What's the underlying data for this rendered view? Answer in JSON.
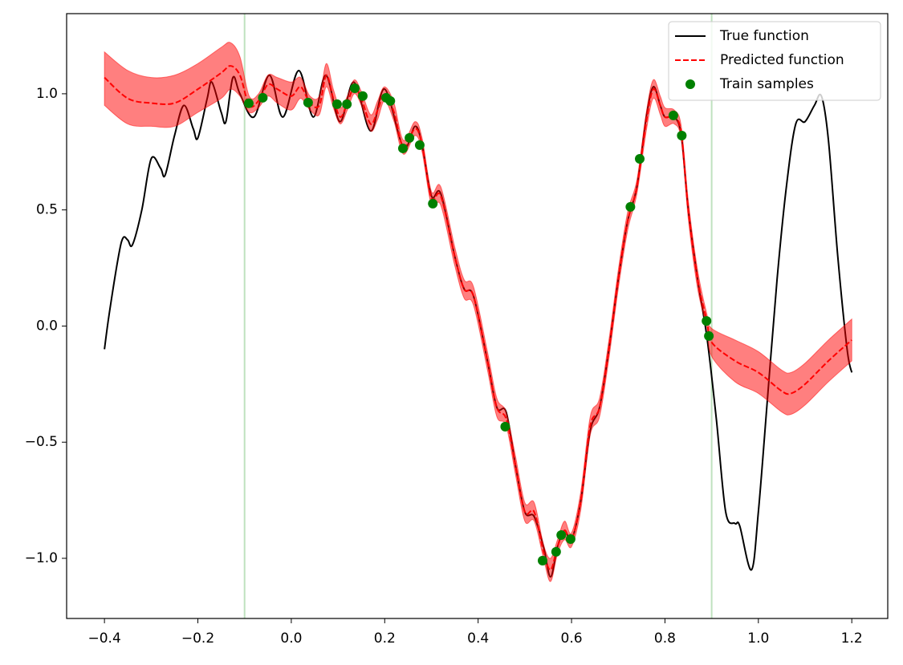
{
  "chart_data": {
    "type": "line",
    "xlim": [
      -0.481,
      1.277
    ],
    "ylim": [
      -1.259,
      1.345
    ],
    "xticks": [
      {
        "value": -0.4,
        "label": "−0.4"
      },
      {
        "value": -0.2,
        "label": "−0.2"
      },
      {
        "value": 0,
        "label": "0.0"
      },
      0.2,
      0.4,
      0.6,
      0.8,
      {
        "value": 1,
        "label": "1.0"
      },
      1.2
    ],
    "yticks": [
      {
        "value": -1,
        "label": "−1.0"
      },
      {
        "value": -0.5,
        "label": "−0.5"
      },
      {
        "value": 0,
        "label": "0.0"
      },
      0.5,
      {
        "value": 1,
        "label": "1.0"
      }
    ],
    "legend": "upper right",
    "vlines": {
      "values": [
        -0.1,
        0.9
      ],
      "color": "#2ca02c"
    },
    "series": [
      {
        "name": "True function",
        "type": "line",
        "color": "#000000",
        "style": "solid",
        "x": [
          -0.4,
          -0.39,
          -0.37,
          -0.36,
          -0.35,
          -0.34,
          -0.32,
          -0.3,
          -0.28,
          -0.27,
          -0.25,
          -0.23,
          -0.21,
          -0.2,
          -0.18,
          -0.17,
          -0.15,
          -0.14,
          -0.125,
          -0.11,
          -0.08,
          -0.047,
          -0.018,
          0.016,
          0.047,
          0.074,
          0.104,
          0.134,
          0.17,
          0.2,
          0.24,
          0.265,
          0.28,
          0.3,
          0.32,
          0.35,
          0.37,
          0.39,
          0.42,
          0.44,
          0.46,
          0.48,
          0.5,
          0.52,
          0.54,
          0.555,
          0.57,
          0.585,
          0.6,
          0.62,
          0.64,
          0.66,
          0.68,
          0.7,
          0.72,
          0.74,
          0.76,
          0.775,
          0.79,
          0.8,
          0.82,
          0.835,
          0.85,
          0.87,
          0.89,
          0.91,
          0.93,
          0.95,
          0.96,
          0.985,
          1.0,
          1.02,
          1.04,
          1.06,
          1.08,
          1.1,
          1.12,
          1.135,
          1.15,
          1.17,
          1.19,
          1.2
        ],
        "values": [
          -0.1,
          0.05,
          0.3,
          0.38,
          0.37,
          0.35,
          0.5,
          0.72,
          0.68,
          0.65,
          0.82,
          0.95,
          0.85,
          0.81,
          0.98,
          1.05,
          0.92,
          0.88,
          1.07,
          1.0,
          0.9,
          1.08,
          0.9,
          1.1,
          0.9,
          1.08,
          0.88,
          1.05,
          0.84,
          1.02,
          0.77,
          0.86,
          0.78,
          0.56,
          0.57,
          0.3,
          0.16,
          0.13,
          -0.15,
          -0.35,
          -0.37,
          -0.6,
          -0.8,
          -0.82,
          -0.95,
          -1.08,
          -0.95,
          -0.88,
          -0.92,
          -0.75,
          -0.45,
          -0.35,
          -0.1,
          0.2,
          0.45,
          0.6,
          0.9,
          1.03,
          0.95,
          0.9,
          0.9,
          0.82,
          0.5,
          0.2,
          -0.05,
          -0.4,
          -0.8,
          -0.85,
          -0.86,
          -1.05,
          -0.8,
          -0.3,
          0.2,
          0.6,
          0.87,
          0.88,
          0.95,
          0.99,
          0.8,
          0.3,
          -0.1,
          -0.2
        ]
      },
      {
        "name": "Predicted function",
        "type": "line",
        "color": "#ff0000",
        "style": "dashed",
        "band_color": "#ff0000",
        "x": [
          -0.4,
          -0.35,
          -0.3,
          -0.25,
          -0.2,
          -0.15,
          -0.13,
          -0.11,
          -0.09,
          -0.07,
          -0.05,
          -0.03,
          0,
          0.02,
          0.04,
          0.06,
          0.075,
          0.09,
          0.105,
          0.12,
          0.135,
          0.15,
          0.17,
          0.185,
          0.2,
          0.22,
          0.24,
          0.265,
          0.28,
          0.3,
          0.32,
          0.35,
          0.37,
          0.39,
          0.42,
          0.44,
          0.46,
          0.48,
          0.5,
          0.52,
          0.54,
          0.555,
          0.57,
          0.585,
          0.6,
          0.62,
          0.64,
          0.66,
          0.68,
          0.7,
          0.72,
          0.74,
          0.76,
          0.775,
          0.79,
          0.8,
          0.82,
          0.835,
          0.85,
          0.87,
          0.89,
          0.9,
          0.95,
          1.0,
          1.05,
          1.07,
          1.1,
          1.15,
          1.2
        ],
        "values": [
          1.07,
          0.98,
          0.96,
          0.96,
          1.02,
          1.09,
          1.12,
          1.08,
          0.95,
          0.97,
          1.04,
          1.02,
          0.99,
          1.03,
          0.96,
          0.95,
          1.08,
          0.98,
          0.9,
          0.96,
          1.03,
          0.98,
          0.87,
          0.93,
          1.0,
          0.92,
          0.77,
          0.85,
          0.78,
          0.55,
          0.56,
          0.3,
          0.16,
          0.13,
          -0.15,
          -0.35,
          -0.4,
          -0.6,
          -0.8,
          -0.8,
          -0.97,
          -1.05,
          -0.95,
          -0.88,
          -0.92,
          -0.75,
          -0.43,
          -0.35,
          -0.1,
          0.2,
          0.45,
          0.6,
          0.88,
          1.02,
          0.95,
          0.9,
          0.9,
          0.83,
          0.5,
          0.2,
          0.02,
          -0.07,
          -0.15,
          -0.2,
          -0.28,
          -0.29,
          -0.25,
          -0.15,
          -0.06
        ],
        "lower": [
          0.95,
          0.87,
          0.86,
          0.86,
          0.92,
          0.98,
          1.02,
          0.99,
          0.92,
          0.94,
          0.99,
          0.96,
          0.93,
          0.98,
          0.93,
          0.91,
          1.03,
          0.94,
          0.87,
          0.93,
          1.0,
          0.95,
          0.84,
          0.89,
          0.97,
          0.88,
          0.74,
          0.82,
          0.75,
          0.52,
          0.52,
          0.26,
          0.12,
          0.09,
          -0.19,
          -0.39,
          -0.43,
          -0.64,
          -0.84,
          -0.84,
          -1.0,
          -1.1,
          -0.98,
          -0.92,
          -0.95,
          -0.79,
          -0.47,
          -0.39,
          -0.14,
          0.16,
          0.41,
          0.57,
          0.84,
          0.98,
          0.91,
          0.86,
          0.87,
          0.8,
          0.46,
          0.16,
          -0.01,
          -0.13,
          -0.24,
          -0.29,
          -0.37,
          -0.38,
          -0.34,
          -0.24,
          -0.15
        ],
        "upper": [
          1.18,
          1.1,
          1.07,
          1.08,
          1.13,
          1.2,
          1.22,
          1.16,
          0.99,
          1.0,
          1.08,
          1.07,
          1.05,
          1.07,
          0.99,
          0.99,
          1.13,
          1.02,
          0.94,
          0.99,
          1.06,
          1.01,
          0.91,
          0.97,
          1.03,
          0.96,
          0.8,
          0.88,
          0.81,
          0.58,
          0.6,
          0.34,
          0.2,
          0.17,
          -0.11,
          -0.31,
          -0.37,
          -0.56,
          -0.76,
          -0.76,
          -0.94,
          -1.0,
          -0.92,
          -0.84,
          -0.89,
          -0.71,
          -0.39,
          -0.31,
          -0.06,
          0.24,
          0.49,
          0.63,
          0.92,
          1.06,
          0.99,
          0.94,
          0.93,
          0.86,
          0.54,
          0.24,
          0.05,
          -0.01,
          -0.06,
          -0.11,
          -0.19,
          -0.2,
          -0.16,
          -0.06,
          0.03
        ]
      },
      {
        "name": "Train samples",
        "type": "scatter",
        "color": "#008000",
        "x": [
          -0.091,
          -0.061,
          0.036,
          0.098,
          0.119,
          0.136,
          0.153,
          0.203,
          0.212,
          0.239,
          0.253,
          0.275,
          0.303,
          0.458,
          0.538,
          0.567,
          0.578,
          0.598,
          0.726,
          0.746,
          0.818,
          0.836,
          0.889,
          0.894
        ],
        "values": [
          0.959,
          0.983,
          0.962,
          0.955,
          0.955,
          1.024,
          0.99,
          0.983,
          0.969,
          0.765,
          0.81,
          0.779,
          0.527,
          -0.433,
          -1.01,
          -0.972,
          -0.9,
          -0.917,
          0.513,
          0.72,
          0.907,
          0.82,
          0.022,
          -0.043
        ]
      }
    ]
  }
}
